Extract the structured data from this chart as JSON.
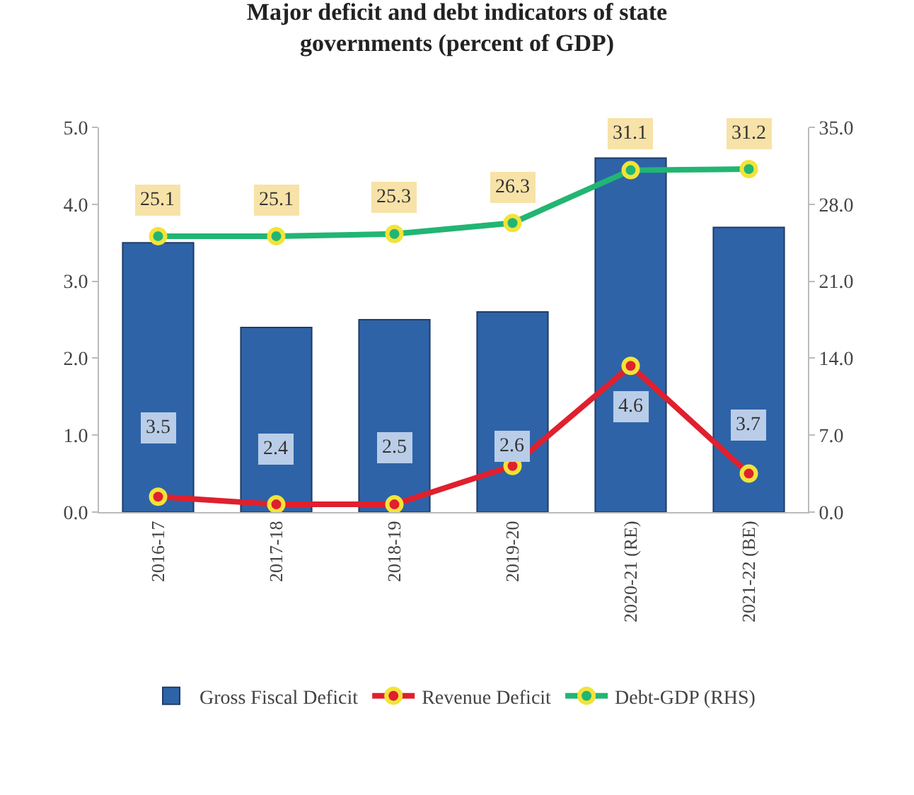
{
  "chart_data": {
    "type": "bar",
    "title": "Major deficit and debt indicators of state governments (percent of GDP)",
    "categories": [
      "2016-17",
      "2017-18",
      "2018-19",
      "2019-20",
      "2020-21 (RE)",
      "2021-22 (BE)"
    ],
    "series": [
      {
        "name": "Gross Fiscal Deficit",
        "color": "#2e63a8",
        "values": [
          3.5,
          2.4,
          2.5,
          2.6,
          4.6,
          3.7
        ],
        "value_labels": [
          "3.5",
          "2.4",
          "2.5",
          "2.6",
          "4.6",
          "3.7"
        ]
      },
      {
        "name": "Revenue Deficit",
        "type": "line",
        "color": "#e0202e",
        "values": [
          0.2,
          0.1,
          0.1,
          0.6,
          1.9,
          0.5
        ]
      },
      {
        "name": "Debt-GDP (RHS)",
        "type": "line",
        "axis": "y2",
        "color": "#22b573",
        "values": [
          25.1,
          25.1,
          25.3,
          26.3,
          31.1,
          31.2
        ],
        "value_labels": [
          "25.1",
          "25.1",
          "25.3",
          "26.3",
          "31.1",
          "31.2"
        ]
      }
    ],
    "ylim": [
      0,
      5
    ],
    "yticks": [
      {
        "value": 0,
        "label": "0.0"
      },
      {
        "value": 1,
        "label": "1.0"
      },
      {
        "value": 2,
        "label": "2.0"
      },
      {
        "value": 3,
        "label": "3.0"
      },
      {
        "value": 4,
        "label": "4.0"
      },
      {
        "value": 5,
        "label": "5.0"
      }
    ],
    "y2lim": [
      0,
      35
    ],
    "y2ticks": [
      {
        "value": 0,
        "label": "0.0"
      },
      {
        "value": 7,
        "label": "7.0"
      },
      {
        "value": 14,
        "label": "14.0"
      },
      {
        "value": 21,
        "label": "21.0"
      },
      {
        "value": 28,
        "label": "28.0"
      },
      {
        "value": 35,
        "label": "35.0"
      }
    ],
    "marker": "circle",
    "line_style": "solid",
    "grid": false,
    "legend": "bottom"
  }
}
